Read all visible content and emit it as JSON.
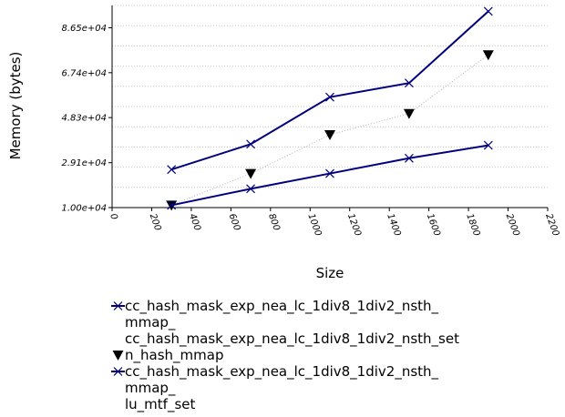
{
  "chart_data": {
    "type": "line",
    "xlabel": "Size",
    "ylabel": "Memory (bytes)",
    "xlim": [
      0,
      2200
    ],
    "ylim": [
      10000,
      96000
    ],
    "x_ticks": [
      "0",
      "200",
      "400",
      "600",
      "800",
      "1000",
      "1200",
      "1400",
      "1600",
      "1800",
      "2000",
      "2200"
    ],
    "y_ticks": [
      {
        "value": 10000,
        "label": "1.00e+04"
      },
      {
        "value": 29100,
        "label": "2.91e+04"
      },
      {
        "value": 48300,
        "label": "4.83e+04"
      },
      {
        "value": 67400,
        "label": "6.74e+04"
      },
      {
        "value": 86500,
        "label": "8.65e+04"
      }
    ],
    "grid": "horizontal-dotted",
    "legend_position": "bottom",
    "series": [
      {
        "name": "cc_hash_mask_exp_nea_lc_1div8_1div2_nsth_mmap_cc_hash_mask_exp_nea_lc_1div8_1div2_nsth_set",
        "legend_lines": [
          "cc_hash_mask_exp_nea_lc_1div8_1div2_nsth_",
          "mmap_",
          "cc_hash_mask_exp_nea_lc_1div8_1div2_nsth_set"
        ],
        "color": "#00007f",
        "marker": "x",
        "line": "solid",
        "x": [
          300,
          700,
          1100,
          1500,
          1900
        ],
        "y": [
          26200,
          37000,
          57000,
          63000,
          93500
        ]
      },
      {
        "name": "n_hash_mmap",
        "legend_lines": [
          "n_hash_mmap"
        ],
        "color": "#000000",
        "marker": "triangle-down",
        "line": "dotted",
        "x": [
          300,
          700,
          1100,
          1500,
          1900
        ],
        "y": [
          11000,
          24500,
          41000,
          50000,
          75000
        ]
      },
      {
        "name": "cc_hash_mask_exp_nea_lc_1div8_1div2_nsth_mmap_lu_mtf_set",
        "legend_lines": [
          "cc_hash_mask_exp_nea_lc_1div8_1div2_nsth_",
          "mmap_",
          "lu_mtf_set"
        ],
        "color": "#00007f",
        "marker": "x",
        "line": "solid",
        "x": [
          300,
          700,
          1100,
          1500,
          1900
        ],
        "y": [
          11000,
          18000,
          24500,
          31000,
          36500
        ]
      }
    ]
  }
}
